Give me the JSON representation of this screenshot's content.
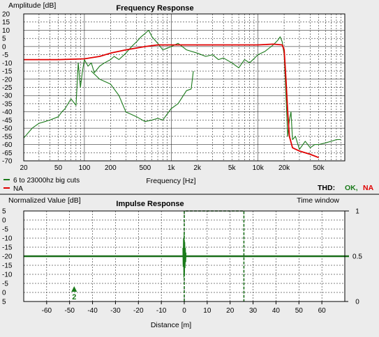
{
  "colors": {
    "panel_bg": "#ececec",
    "plot_bg": "#ffffff",
    "grid": "#000000",
    "series_green": "#1a7a1a",
    "series_red": "#e00000",
    "thd_ok": "#1a7a1a",
    "thd_na": "#e00000"
  },
  "chart_data": [
    {
      "type": "line",
      "title": "Frequency Response",
      "ylabel": "Amplitude [dB]",
      "xlabel": "Frequency [Hz]",
      "xscale": "log",
      "xlim": [
        20,
        100000
      ],
      "ylim": [
        -70,
        20
      ],
      "x_ticks": [
        20,
        50,
        100,
        200,
        500,
        1000,
        2000,
        5000,
        10000,
        20000,
        50000
      ],
      "x_tick_labels": [
        "20",
        "50",
        "100",
        "200",
        "500",
        "1k",
        "2k",
        "5k",
        "10k",
        "20k",
        "50k"
      ],
      "y_ticks": [
        20,
        15,
        10,
        5,
        0,
        -5,
        -10,
        -15,
        -20,
        -25,
        -30,
        -35,
        -40,
        -45,
        -50,
        -55,
        -60,
        -65,
        -70
      ],
      "y_tick_labels": [
        "20",
        "15",
        "10",
        "5",
        "0",
        "-5",
        "-10",
        "-15",
        "-20",
        "-25",
        "-30",
        "-35",
        "-40",
        "-45",
        "-50",
        "-55",
        "-60",
        "-65",
        "-70"
      ],
      "grid": true,
      "legend_position": "bottom-left",
      "series": [
        {
          "name": "6 to 23000hz big cuts",
          "color": "#1a7a1a",
          "x": [
            20,
            25,
            30,
            35,
            40,
            50,
            55,
            60,
            70,
            80,
            85,
            90,
            95,
            100,
            110,
            120,
            130,
            150,
            170,
            200,
            220,
            250,
            300,
            350,
            400,
            450,
            500,
            550,
            600,
            700,
            800,
            900,
            1000,
            1200,
            1500,
            2000,
            2500,
            3000,
            3500,
            4000,
            5000,
            6000,
            7000,
            8000,
            10000,
            12000,
            15000,
            17000,
            18000,
            19000,
            20000,
            21000,
            22000,
            23000,
            24000,
            25000,
            27000,
            30000,
            35000,
            40000,
            45000,
            50000,
            60000,
            70000,
            80000,
            90000
          ],
          "values": [
            -56,
            -50,
            -47,
            -46,
            -45,
            -43,
            -40,
            -38,
            -32,
            -36,
            -10,
            -25,
            -15,
            -8,
            -12,
            -10,
            -16,
            -12,
            -10,
            -8,
            -6,
            -8,
            -4,
            0,
            3,
            6,
            8,
            10,
            6,
            2,
            -2,
            -1,
            0,
            2,
            -2,
            -4,
            -6,
            -5,
            -8,
            -7,
            -10,
            -13,
            -8,
            -10,
            -5,
            -3,
            1,
            4,
            6,
            3,
            -5,
            -30,
            -55,
            -45,
            -40,
            -57,
            -55,
            -63,
            -58,
            -62,
            -60,
            -60,
            -59,
            -58,
            -57,
            -57
          ]
        },
        {
          "name": "6 to 23000hz big cuts",
          "color": "#1a7a1a",
          "x": [
            120,
            150,
            200,
            250,
            300,
            400,
            500,
            600,
            700,
            800,
            1000,
            1200,
            1500,
            1700,
            1800
          ],
          "values": [
            -15,
            -20,
            -23,
            -30,
            -40,
            -43,
            -46,
            -45,
            -44,
            -45,
            -38,
            -35,
            -27,
            -26,
            -15
          ]
        },
        {
          "name": "NA",
          "color": "#e00000",
          "x": [
            20,
            50,
            100,
            150,
            200,
            300,
            500,
            700,
            1000,
            2000,
            5000,
            10000,
            15000,
            19000,
            20000,
            21000,
            22000,
            23000,
            25000,
            30000,
            40000,
            50000
          ],
          "values": [
            -8,
            -8,
            -7.5,
            -6,
            -4,
            -2,
            0,
            1,
            1,
            1,
            1,
            1,
            1.5,
            1,
            -2,
            -20,
            -40,
            -55,
            -62,
            -64,
            -66,
            -68
          ]
        }
      ],
      "thd": {
        "label": "THD:",
        "ok_text": "OK,",
        "na_text": "NA"
      }
    },
    {
      "type": "line",
      "title": "Impulse Response",
      "ylabel": "Normalized Value [dB]",
      "xlabel": "Distance [m]",
      "xlim": [
        -70,
        70
      ],
      "ylim": [
        0,
        1
      ],
      "x_ticks": [
        -60,
        -50,
        -40,
        -30,
        -20,
        -10,
        0,
        10,
        20,
        30,
        40,
        50,
        60
      ],
      "x_tick_labels": [
        "-60",
        "-50",
        "-40",
        "-30",
        "-20",
        "-10",
        "0",
        "10",
        "20",
        "30",
        "40",
        "50",
        "60"
      ],
      "left_tick_labels": [
        "5",
        "0",
        "-5",
        "-10",
        "-15",
        "-20",
        "-15",
        "-10",
        "-5",
        "0",
        "5"
      ],
      "right_axis_label": "Time window",
      "right_ticks": [
        1,
        0.5,
        0
      ],
      "right_tick_labels": [
        "1",
        "0.5",
        "0"
      ],
      "grid": true,
      "impulse_position_m": 0,
      "window_start_m": 0,
      "window_end_m": 26,
      "window_level": 1,
      "marker": {
        "label": "2",
        "x_m": -48
      }
    }
  ]
}
